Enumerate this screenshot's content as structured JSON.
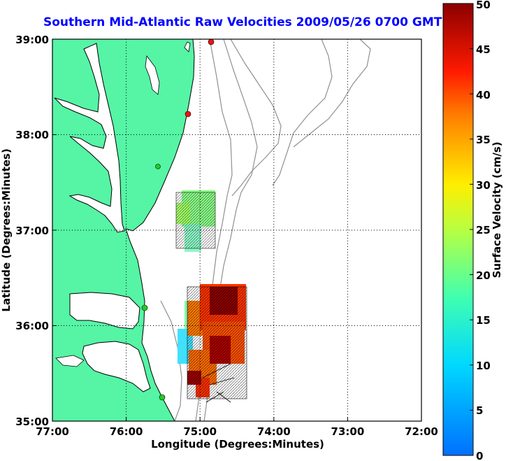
{
  "title": "Southern Mid-Atlantic Raw Velocities 2009/05/26 0700 GMT",
  "xlabel": "Longitude (Degrees:Minutes)",
  "ylabel": "Latitude (Degrees:Minutes)",
  "x_ticks": [
    "77:00",
    "76:00",
    "75:00",
    "74:00",
    "73:00",
    "72:00"
  ],
  "y_ticks": [
    "39:00",
    "38:00",
    "37:00",
    "36:00",
    "35:00"
  ],
  "colorbar": {
    "label": "Surface Velocity (cm/s)",
    "ticks": [
      "0",
      "5",
      "10",
      "15",
      "20",
      "25",
      "30",
      "35",
      "40",
      "45",
      "50"
    ],
    "range": [
      0,
      50
    ],
    "colormap": "jet"
  },
  "colors": {
    "land": "#55f5a5",
    "water": "#ffffff",
    "coastline": "#000000",
    "bathymetry": "#909090",
    "title": "#0000ff",
    "station_green": "#22cc22",
    "station_red": "#ee1111"
  },
  "map": {
    "lon_range": [
      -77,
      -72
    ],
    "lat_range": [
      35,
      39
    ],
    "grid": "dotted"
  },
  "stations": [
    {
      "color": "red",
      "lon": -74.85,
      "lat": 39.0
    },
    {
      "color": "red",
      "lon": -75.15,
      "lat": 38.23
    },
    {
      "color": "green",
      "lon": -75.55,
      "lat": 37.7
    },
    {
      "color": "green",
      "lon": -75.65,
      "lat": 36.2
    },
    {
      "color": "green",
      "lon": -75.45,
      "lat": 35.27
    }
  ]
}
